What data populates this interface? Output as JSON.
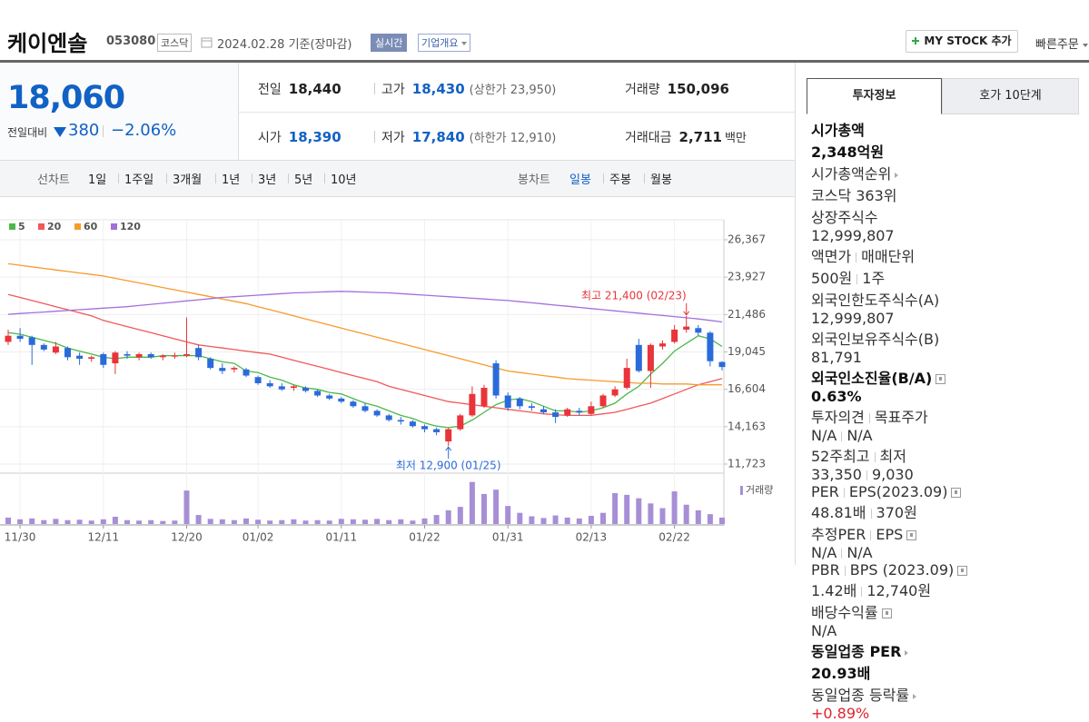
{
  "header": {
    "title": "케이엔솔",
    "code": "053080",
    "market": "코스닥",
    "date": "2024.02.28 기준(장마감)",
    "realtime": "실시간",
    "overview": "기업개요",
    "mystock": "MY STOCK 추가",
    "quick_order": "빠른주문"
  },
  "price": {
    "current": "18,060",
    "change_label": "전일대비",
    "change": "380",
    "change_rate": "−2.06%",
    "color": "#1261c4"
  },
  "summary": [
    [
      {
        "label": "전일",
        "value": "18,440",
        "color": "#222"
      },
      {
        "label": "고가",
        "value": "18,430",
        "note": "(상한가 23,950)",
        "color": "#1261c4"
      },
      {
        "label": "거래량",
        "value": "150,096",
        "color": "#222"
      }
    ],
    [
      {
        "label": "시가",
        "value": "18,390",
        "color": "#1261c4"
      },
      {
        "label": "저가",
        "value": "17,840",
        "note": "(하한가 12,910)",
        "color": "#1261c4"
      },
      {
        "label": "거래대금",
        "value": "2,711",
        "unit": "백만",
        "color": "#222"
      }
    ]
  ],
  "period_tabs": {
    "line_label": "선차트",
    "line": [
      "1일",
      "1주일",
      "3개월",
      "1년",
      "3년",
      "5년",
      "10년"
    ],
    "candle_label": "봉차트",
    "candle": [
      "일봉",
      "주봉",
      "월봉"
    ],
    "candle_active": 0
  },
  "info_tabs": {
    "items": [
      "투자정보",
      "호가 10단계"
    ],
    "active": 0
  },
  "info": [
    [
      {
        "label": [
          "시가총액"
        ],
        "value": [
          "2,348억원"
        ],
        "bold": true
      },
      {
        "label": [
          "시가총액순위"
        ],
        "link": true,
        "value": [
          "코스닥 363위"
        ]
      },
      {
        "label": [
          "상장주식수"
        ],
        "value": [
          "12,999,807"
        ]
      },
      {
        "label": [
          "액면가",
          "매매단위"
        ],
        "value": [
          "500원",
          "1주"
        ]
      }
    ],
    [
      {
        "label": [
          "외국인한도주식수(A)"
        ],
        "value": [
          "12,999,807"
        ]
      },
      {
        "label": [
          "외국인보유주식수(B)"
        ],
        "value": [
          "81,791"
        ]
      },
      {
        "label": [
          "외국인소진율(B/A)"
        ],
        "help": true,
        "value": [
          "0.63%"
        ],
        "bold": true
      }
    ],
    [
      {
        "label": [
          "투자의견",
          "목표주가"
        ],
        "value": [
          "N/A",
          "N/A"
        ]
      },
      {
        "label": [
          "52주최고",
          "최저"
        ],
        "value": [
          "33,350",
          "9,030"
        ]
      }
    ],
    [
      {
        "label": [
          "PER",
          "EPS(2023.09)"
        ],
        "help": true,
        "value": [
          "48.81배",
          "370원"
        ]
      },
      {
        "label": [
          "추정PER",
          "EPS"
        ],
        "help": true,
        "value": [
          "N/A",
          "N/A"
        ]
      },
      {
        "label": [
          "PBR",
          "BPS (2023.09)"
        ],
        "help": true,
        "value": [
          "1.42배",
          "12,740원"
        ]
      },
      {
        "label": [
          "배당수익률"
        ],
        "help": true,
        "value": [
          "N/A"
        ]
      }
    ],
    [
      {
        "label": [
          "동일업종 PER"
        ],
        "link": true,
        "value": [
          "20.93배"
        ],
        "bold": true
      },
      {
        "label": [
          "동일업종 등락률"
        ],
        "link": true,
        "value": [
          "+0.89%"
        ],
        "color": "#e0242b"
      }
    ]
  ],
  "chart_data": {
    "type": "candlestick",
    "categories": [
      null,
      "11/30",
      null,
      null,
      null,
      null,
      null,
      null,
      "12/11",
      null,
      null,
      null,
      null,
      null,
      null,
      "12/20",
      null,
      null,
      null,
      null,
      null,
      "01/02",
      null,
      null,
      null,
      null,
      null,
      null,
      "01/11",
      null,
      null,
      null,
      null,
      null,
      null,
      "01/22",
      null,
      null,
      null,
      null,
      null,
      null,
      "01/31",
      null,
      null,
      null,
      null,
      null,
      null,
      "02/13",
      null,
      null,
      null,
      null,
      null,
      null,
      "02/22",
      null,
      null,
      null,
      null
    ],
    "open": [
      19700,
      20100,
      20000,
      19500,
      19000,
      19300,
      18800,
      18600,
      18900,
      18300,
      18900,
      18700,
      18900,
      18700,
      18800,
      18800,
      19300,
      18600,
      18000,
      17900,
      17900,
      17400,
      17000,
      16800,
      16700,
      16700,
      16500,
      16200,
      16000,
      15800,
      15500,
      15200,
      14900,
      14600,
      14500,
      14200,
      14000,
      13200,
      14000,
      14900,
      15500,
      18300,
      16200,
      16000,
      15500,
      15300,
      15100,
      14900,
      15200,
      15000,
      15500,
      16200,
      16700,
      19500,
      17800,
      19400,
      19700,
      20500,
      20600,
      20300,
      18390
    ],
    "high": [
      20500,
      20600,
      20100,
      19600,
      19700,
      19400,
      19000,
      18800,
      19000,
      19100,
      19100,
      19000,
      19000,
      18900,
      19000,
      21300,
      19500,
      18700,
      18300,
      18100,
      18000,
      17500,
      17200,
      17000,
      16900,
      16800,
      16600,
      16300,
      16100,
      15900,
      15700,
      15300,
      15000,
      14800,
      14600,
      14300,
      14100,
      14100,
      15000,
      16800,
      16900,
      18500,
      16400,
      16100,
      15700,
      15500,
      15300,
      15400,
      15400,
      15800,
      16300,
      16800,
      18600,
      19900,
      19600,
      19800,
      20800,
      21400,
      20800,
      20400,
      18430
    ],
    "low": [
      19500,
      19700,
      18200,
      19100,
      18900,
      18500,
      18200,
      18400,
      18000,
      17600,
      18600,
      18500,
      18600,
      18500,
      18600,
      18700,
      18500,
      17900,
      17600,
      17700,
      17400,
      16900,
      16700,
      16500,
      16500,
      16400,
      16100,
      15900,
      15700,
      15400,
      15100,
      14800,
      14500,
      14300,
      14100,
      13800,
      13600,
      12900,
      13900,
      14800,
      15400,
      16000,
      15200,
      15300,
      15200,
      15000,
      14400,
      14800,
      14900,
      14900,
      15400,
      16100,
      16600,
      17700,
      16700,
      19200,
      19600,
      20300,
      20100,
      18100,
      17840
    ],
    "close": [
      20100,
      19900,
      19500,
      19200,
      19400,
      18700,
      18600,
      18700,
      18200,
      19000,
      18800,
      18900,
      18700,
      18800,
      18800,
      18900,
      18700,
      18000,
      17800,
      18000,
      17500,
      17000,
      16800,
      16600,
      16800,
      16500,
      16200,
      16000,
      15800,
      15500,
      15200,
      14900,
      14600,
      14500,
      14200,
      14000,
      13800,
      14000,
      14900,
      16300,
      16700,
      16200,
      15400,
      15500,
      15400,
      15100,
      14800,
      15300,
      15100,
      15500,
      16200,
      16600,
      18000,
      17800,
      19500,
      19600,
      20500,
      20700,
      20300,
      18440,
      18060
    ],
    "up_color": "#e8343a",
    "down_color": "#2a6bd9",
    "ylim": [
      11723,
      26367
    ],
    "yticks": [
      {
        "value": 11723,
        "label": "11,723"
      },
      {
        "value": 14163,
        "label": "14,163"
      },
      {
        "value": 16604,
        "label": "16,604"
      },
      {
        "value": 19045,
        "label": "19,045"
      },
      {
        "value": 21486,
        "label": "21,486"
      },
      {
        "value": 23927,
        "label": "23,927"
      },
      {
        "value": 26367,
        "label": "26,367"
      }
    ],
    "grid": true,
    "moving_averages": [
      {
        "name": "5",
        "color": "#4cb84a",
        "values": [
          20300,
          20200,
          20000,
          19800,
          19600,
          19300,
          19100,
          18900,
          18700,
          18600,
          18700,
          18700,
          18700,
          18800,
          18800,
          18800,
          18800,
          18600,
          18400,
          18300,
          17800,
          17700,
          17400,
          17200,
          16900,
          16700,
          16600,
          16400,
          16300,
          16000,
          15700,
          15500,
          15200,
          14900,
          14700,
          14400,
          14200,
          14100,
          14200,
          14600,
          15100,
          15600,
          15900,
          16000,
          15800,
          15500,
          15200,
          15200,
          15100,
          15200,
          15400,
          15700,
          16300,
          16800,
          17600,
          18300,
          19100,
          19600,
          20100,
          19900,
          19400
        ]
      },
      {
        "name": "20",
        "color": "#f0585a",
        "values": [
          22800,
          22600,
          22400,
          22200,
          22000,
          21800,
          21600,
          21400,
          21100,
          20900,
          20700,
          20500,
          20300,
          20100,
          19900,
          19700,
          19500,
          19400,
          19300,
          19200,
          19100,
          19000,
          18900,
          18700,
          18500,
          18300,
          18100,
          17900,
          17700,
          17500,
          17300,
          17100,
          16800,
          16600,
          16400,
          16200,
          16000,
          15800,
          15700,
          15600,
          15500,
          15400,
          15300,
          15200,
          15100,
          15000,
          14950,
          14900,
          14900,
          14900,
          15000,
          15100,
          15300,
          15500,
          15700,
          16000,
          16300,
          16600,
          16900,
          17100,
          17300
        ]
      },
      {
        "name": "60",
        "color": "#f79b2b",
        "values": [
          24800,
          24700,
          24600,
          24500,
          24400,
          24300,
          24200,
          24100,
          24000,
          23850,
          23700,
          23550,
          23400,
          23250,
          23100,
          22950,
          22800,
          22650,
          22500,
          22350,
          22200,
          22000,
          21800,
          21600,
          21400,
          21200,
          21000,
          20800,
          20600,
          20400,
          20200,
          20000,
          19800,
          19600,
          19400,
          19200,
          19000,
          18800,
          18600,
          18400,
          18200,
          18000,
          17800,
          17700,
          17600,
          17500,
          17400,
          17300,
          17250,
          17200,
          17150,
          17100,
          17050,
          17000,
          17000,
          16950,
          16950,
          16950,
          16900,
          16900,
          16900
        ]
      },
      {
        "name": "120",
        "color": "#a36fdc",
        "values": [
          21500,
          21550,
          21600,
          21650,
          21700,
          21750,
          21800,
          21850,
          21900,
          21950,
          22000,
          22075,
          22150,
          22225,
          22300,
          22375,
          22450,
          22525,
          22600,
          22650,
          22700,
          22750,
          22800,
          22850,
          22900,
          22925,
          22950,
          22975,
          23000,
          22975,
          22950,
          22925,
          22900,
          22850,
          22800,
          22750,
          22700,
          22650,
          22600,
          22550,
          22500,
          22450,
          22400,
          22325,
          22250,
          22175,
          22100,
          22025,
          21950,
          21875,
          21800,
          21725,
          21650,
          21575,
          21500,
          21425,
          21350,
          21275,
          21200,
          21100,
          21000
        ]
      }
    ],
    "volume": {
      "name": "거래량",
      "color": "#a78fd6",
      "ylim": [
        0,
        1100000
      ],
      "values": [
        150000,
        110000,
        130000,
        90000,
        120000,
        90000,
        100000,
        80000,
        110000,
        170000,
        90000,
        80000,
        90000,
        70000,
        80000,
        780000,
        210000,
        120000,
        110000,
        90000,
        130000,
        100000,
        80000,
        90000,
        110000,
        80000,
        90000,
        80000,
        120000,
        110000,
        100000,
        120000,
        90000,
        110000,
        80000,
        130000,
        210000,
        320000,
        400000,
        980000,
        700000,
        800000,
        420000,
        260000,
        180000,
        140000,
        200000,
        150000,
        130000,
        190000,
        260000,
        720000,
        680000,
        600000,
        480000,
        370000,
        760000,
        450000,
        320000,
        230000,
        150096
      ]
    },
    "annotations": {
      "max": "최고 21,400 (02/23)",
      "min": "최저 12,900 (01/25)"
    }
  }
}
